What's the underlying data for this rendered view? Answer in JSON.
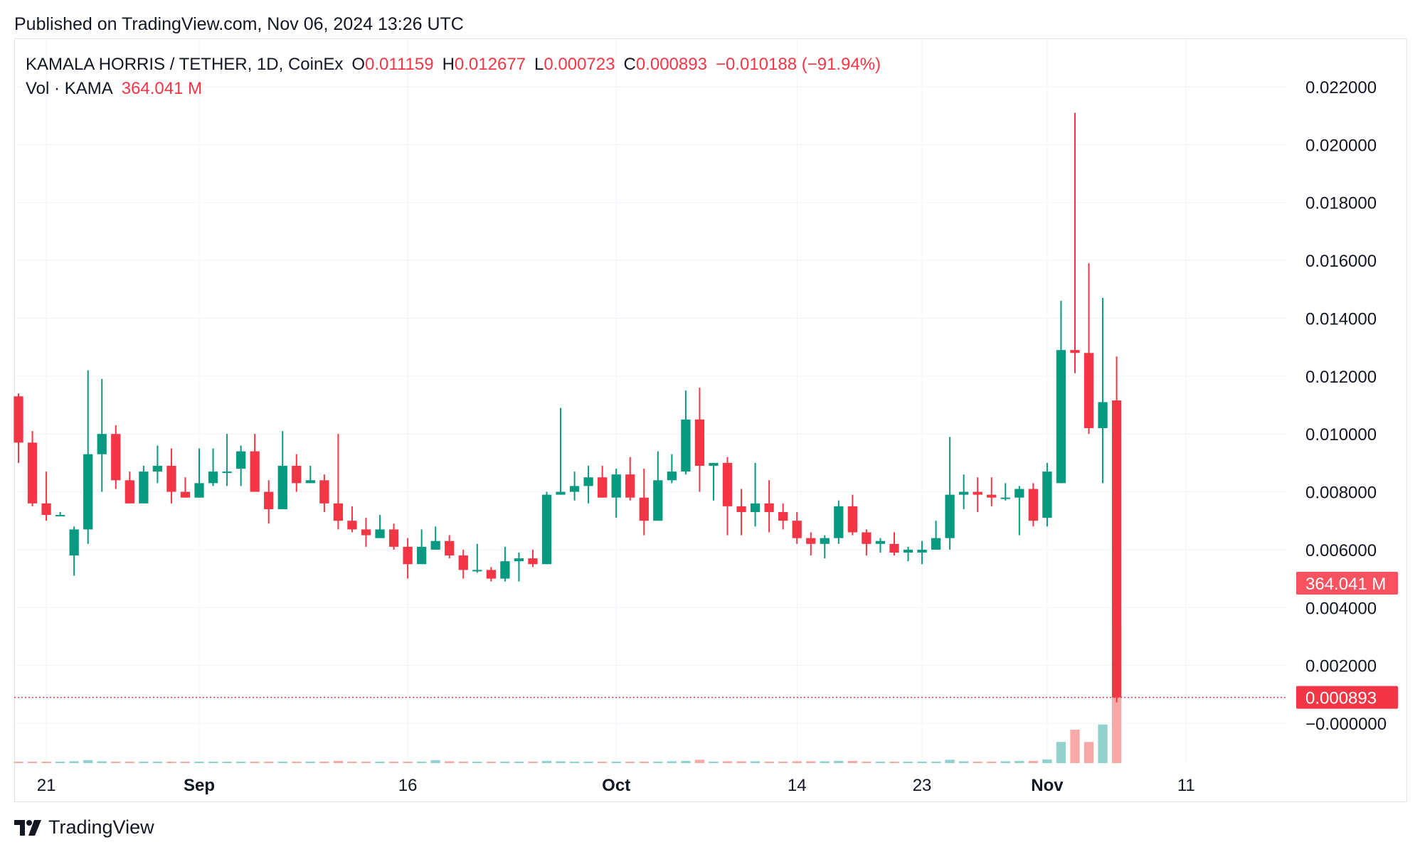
{
  "header": {
    "published": "Published on TradingView.com, Nov 06, 2024 13:26 UTC"
  },
  "legend": {
    "symbol": "KAMALA HORRIS / TETHER, 1D, CoinEx",
    "open_label": "O",
    "open": "0.011159",
    "high_label": "H",
    "high": "0.012677",
    "low_label": "L",
    "low": "0.000723",
    "close_label": "C",
    "close": "0.000893",
    "change": "−0.010188 (−91.94%)",
    "vol_label": "Vol · KAMA",
    "vol_value": "364.041 M"
  },
  "footer": {
    "brand": "TradingView"
  },
  "colors": {
    "up": "#089981",
    "down": "#f23645",
    "up_volume": "#92d2cc",
    "down_volume": "#f7a9a7",
    "grid": "#f0f3fa",
    "text": "#131722"
  },
  "chart_data": {
    "type": "candlestick",
    "symbol": "KAMALA HORRIS / TETHER",
    "interval": "1D",
    "exchange": "CoinEx",
    "y_range": [
      -0.0002,
      0.0225
    ],
    "y_ticks": [
      {
        "v": 0.022,
        "label": "0.022000"
      },
      {
        "v": 0.02,
        "label": "0.020000"
      },
      {
        "v": 0.018,
        "label": "0.018000"
      },
      {
        "v": 0.016,
        "label": "0.016000"
      },
      {
        "v": 0.014,
        "label": "0.014000"
      },
      {
        "v": 0.012,
        "label": "0.012000"
      },
      {
        "v": 0.01,
        "label": "0.010000"
      },
      {
        "v": 0.008,
        "label": "0.008000"
      },
      {
        "v": 0.006,
        "label": "0.006000"
      },
      {
        "v": 0.004,
        "label": "0.004000"
      },
      {
        "v": 0.002,
        "label": "0.002000"
      },
      {
        "v": 0.0,
        "label": "−0.000000"
      }
    ],
    "x_labels": [
      {
        "date": "2024-08-21",
        "label": "21",
        "bold": false
      },
      {
        "date": "2024-09-01",
        "label": "Sep",
        "bold": true
      },
      {
        "date": "2024-09-16",
        "label": "16",
        "bold": false
      },
      {
        "date": "2024-10-01",
        "label": "Oct",
        "bold": true
      },
      {
        "date": "2024-10-14",
        "label": "14",
        "bold": false
      },
      {
        "date": "2024-10-23",
        "label": "23",
        "bold": false
      },
      {
        "date": "2024-11-01",
        "label": "Nov",
        "bold": true
      },
      {
        "date": "2024-11-11",
        "label": "11",
        "bold": false
      }
    ],
    "x_range": [
      "2024-08-19",
      "2024-11-16"
    ],
    "last_price": {
      "value": 0.000893,
      "label": "0.000893"
    },
    "volume_label": {
      "value": 364041000,
      "label": "364.041 M"
    },
    "volume_max": 364041000,
    "candles": [
      {
        "date": "2024-08-19",
        "o": 0.0113,
        "h": 0.0114,
        "l": 0.009,
        "c": 0.0097,
        "v": 3000000
      },
      {
        "date": "2024-08-20",
        "o": 0.0097,
        "h": 0.0101,
        "l": 0.0075,
        "c": 0.0076,
        "v": 3000000
      },
      {
        "date": "2024-08-21",
        "o": 0.0076,
        "h": 0.0087,
        "l": 0.007,
        "c": 0.0072,
        "v": 3000000
      },
      {
        "date": "2024-08-22",
        "o": 0.0072,
        "h": 0.0073,
        "l": 0.0072,
        "c": 0.0072,
        "v": 2000000
      },
      {
        "date": "2024-08-23",
        "o": 0.0058,
        "h": 0.0068,
        "l": 0.0051,
        "c": 0.0067,
        "v": 5000000
      },
      {
        "date": "2024-08-24",
        "o": 0.0067,
        "h": 0.0122,
        "l": 0.0062,
        "c": 0.0093,
        "v": 8000000
      },
      {
        "date": "2024-08-25",
        "o": 0.0093,
        "h": 0.0119,
        "l": 0.008,
        "c": 0.01,
        "v": 5000000
      },
      {
        "date": "2024-08-26",
        "o": 0.01,
        "h": 0.0103,
        "l": 0.0081,
        "c": 0.0084,
        "v": 4000000
      },
      {
        "date": "2024-08-27",
        "o": 0.0084,
        "h": 0.0087,
        "l": 0.0076,
        "c": 0.0076,
        "v": 4000000
      },
      {
        "date": "2024-08-28",
        "o": 0.0076,
        "h": 0.0089,
        "l": 0.0076,
        "c": 0.0087,
        "v": 4000000
      },
      {
        "date": "2024-08-29",
        "o": 0.0087,
        "h": 0.0096,
        "l": 0.0083,
        "c": 0.0089,
        "v": 4000000
      },
      {
        "date": "2024-08-30",
        "o": 0.0089,
        "h": 0.0095,
        "l": 0.0076,
        "c": 0.008,
        "v": 3000000
      },
      {
        "date": "2024-08-31",
        "o": 0.008,
        "h": 0.0085,
        "l": 0.0078,
        "c": 0.0078,
        "v": 3000000
      },
      {
        "date": "2024-09-01",
        "o": 0.0078,
        "h": 0.0095,
        "l": 0.0078,
        "c": 0.0083,
        "v": 3000000
      },
      {
        "date": "2024-09-02",
        "o": 0.0083,
        "h": 0.0095,
        "l": 0.0082,
        "c": 0.0087,
        "v": 3000000
      },
      {
        "date": "2024-09-03",
        "o": 0.0087,
        "h": 0.01,
        "l": 0.0082,
        "c": 0.0087,
        "v": 3000000
      },
      {
        "date": "2024-09-04",
        "o": 0.0088,
        "h": 0.0096,
        "l": 0.0082,
        "c": 0.0094,
        "v": 3000000
      },
      {
        "date": "2024-09-05",
        "o": 0.0094,
        "h": 0.01,
        "l": 0.008,
        "c": 0.008,
        "v": 3000000
      },
      {
        "date": "2024-09-06",
        "o": 0.008,
        "h": 0.0084,
        "l": 0.0069,
        "c": 0.0074,
        "v": 4000000
      },
      {
        "date": "2024-09-07",
        "o": 0.0074,
        "h": 0.0101,
        "l": 0.0074,
        "c": 0.0089,
        "v": 4000000
      },
      {
        "date": "2024-09-08",
        "o": 0.0089,
        "h": 0.0093,
        "l": 0.008,
        "c": 0.0083,
        "v": 4000000
      },
      {
        "date": "2024-09-09",
        "o": 0.0083,
        "h": 0.0089,
        "l": 0.0083,
        "c": 0.0084,
        "v": 4000000
      },
      {
        "date": "2024-09-10",
        "o": 0.0084,
        "h": 0.0086,
        "l": 0.0073,
        "c": 0.0076,
        "v": 4000000
      },
      {
        "date": "2024-09-11",
        "o": 0.0076,
        "h": 0.01,
        "l": 0.0067,
        "c": 0.007,
        "v": 6000000
      },
      {
        "date": "2024-09-12",
        "o": 0.007,
        "h": 0.0075,
        "l": 0.0066,
        "c": 0.0067,
        "v": 4000000
      },
      {
        "date": "2024-09-13",
        "o": 0.0067,
        "h": 0.0071,
        "l": 0.0061,
        "c": 0.0065,
        "v": 4000000
      },
      {
        "date": "2024-09-14",
        "o": 0.0064,
        "h": 0.0072,
        "l": 0.0064,
        "c": 0.0067,
        "v": 3000000
      },
      {
        "date": "2024-09-15",
        "o": 0.0067,
        "h": 0.0069,
        "l": 0.006,
        "c": 0.0061,
        "v": 3000000
      },
      {
        "date": "2024-09-16",
        "o": 0.0061,
        "h": 0.0064,
        "l": 0.005,
        "c": 0.0055,
        "v": 3000000
      },
      {
        "date": "2024-09-17",
        "o": 0.0055,
        "h": 0.0067,
        "l": 0.0055,
        "c": 0.0061,
        "v": 4000000
      },
      {
        "date": "2024-09-18",
        "o": 0.006,
        "h": 0.0068,
        "l": 0.006,
        "c": 0.0063,
        "v": 8000000
      },
      {
        "date": "2024-09-19",
        "o": 0.0063,
        "h": 0.0065,
        "l": 0.0057,
        "c": 0.0058,
        "v": 5000000
      },
      {
        "date": "2024-09-20",
        "o": 0.0058,
        "h": 0.006,
        "l": 0.005,
        "c": 0.0053,
        "v": 4000000
      },
      {
        "date": "2024-09-21",
        "o": 0.0053,
        "h": 0.0062,
        "l": 0.0052,
        "c": 0.0053,
        "v": 3000000
      },
      {
        "date": "2024-09-22",
        "o": 0.0053,
        "h": 0.0054,
        "l": 0.0049,
        "c": 0.005,
        "v": 3000000
      },
      {
        "date": "2024-09-23",
        "o": 0.005,
        "h": 0.0061,
        "l": 0.0049,
        "c": 0.0056,
        "v": 4000000
      },
      {
        "date": "2024-09-24",
        "o": 0.0056,
        "h": 0.0059,
        "l": 0.0049,
        "c": 0.0057,
        "v": 4000000
      },
      {
        "date": "2024-09-25",
        "o": 0.0057,
        "h": 0.006,
        "l": 0.0054,
        "c": 0.0055,
        "v": 4000000
      },
      {
        "date": "2024-09-26",
        "o": 0.0055,
        "h": 0.008,
        "l": 0.0055,
        "c": 0.0079,
        "v": 6000000
      },
      {
        "date": "2024-09-27",
        "o": 0.0079,
        "h": 0.0109,
        "l": 0.0079,
        "c": 0.008,
        "v": 5000000
      },
      {
        "date": "2024-09-28",
        "o": 0.008,
        "h": 0.0087,
        "l": 0.0077,
        "c": 0.0082,
        "v": 4000000
      },
      {
        "date": "2024-09-29",
        "o": 0.0082,
        "h": 0.0089,
        "l": 0.0076,
        "c": 0.0085,
        "v": 4000000
      },
      {
        "date": "2024-09-30",
        "o": 0.0085,
        "h": 0.0089,
        "l": 0.0078,
        "c": 0.0078,
        "v": 3000000
      },
      {
        "date": "2024-10-01",
        "o": 0.0078,
        "h": 0.0088,
        "l": 0.0071,
        "c": 0.0086,
        "v": 4000000
      },
      {
        "date": "2024-10-02",
        "o": 0.0086,
        "h": 0.0092,
        "l": 0.0077,
        "c": 0.0078,
        "v": 3000000
      },
      {
        "date": "2024-10-03",
        "o": 0.0078,
        "h": 0.0088,
        "l": 0.0065,
        "c": 0.007,
        "v": 4000000
      },
      {
        "date": "2024-10-04",
        "o": 0.007,
        "h": 0.0094,
        "l": 0.007,
        "c": 0.0084,
        "v": 4000000
      },
      {
        "date": "2024-10-05",
        "o": 0.0084,
        "h": 0.0093,
        "l": 0.0083,
        "c": 0.0087,
        "v": 5000000
      },
      {
        "date": "2024-10-06",
        "o": 0.0087,
        "h": 0.0115,
        "l": 0.0086,
        "c": 0.0105,
        "v": 6000000
      },
      {
        "date": "2024-10-07",
        "o": 0.0105,
        "h": 0.0116,
        "l": 0.008,
        "c": 0.0089,
        "v": 9000000
      },
      {
        "date": "2024-10-08",
        "o": 0.0089,
        "h": 0.009,
        "l": 0.0077,
        "c": 0.009,
        "v": 4000000
      },
      {
        "date": "2024-10-09",
        "o": 0.009,
        "h": 0.0092,
        "l": 0.0065,
        "c": 0.0075,
        "v": 5000000
      },
      {
        "date": "2024-10-10",
        "o": 0.0075,
        "h": 0.0081,
        "l": 0.0065,
        "c": 0.0073,
        "v": 5000000
      },
      {
        "date": "2024-10-11",
        "o": 0.0073,
        "h": 0.009,
        "l": 0.0068,
        "c": 0.0076,
        "v": 5000000
      },
      {
        "date": "2024-10-12",
        "o": 0.0076,
        "h": 0.0084,
        "l": 0.0066,
        "c": 0.0073,
        "v": 4000000
      },
      {
        "date": "2024-10-13",
        "o": 0.0073,
        "h": 0.0076,
        "l": 0.0067,
        "c": 0.007,
        "v": 4000000
      },
      {
        "date": "2024-10-14",
        "o": 0.007,
        "h": 0.0073,
        "l": 0.0062,
        "c": 0.0064,
        "v": 5000000
      },
      {
        "date": "2024-10-15",
        "o": 0.0064,
        "h": 0.0066,
        "l": 0.0058,
        "c": 0.0062,
        "v": 5000000
      },
      {
        "date": "2024-10-16",
        "o": 0.0062,
        "h": 0.0065,
        "l": 0.0057,
        "c": 0.0064,
        "v": 5000000
      },
      {
        "date": "2024-10-17",
        "o": 0.0064,
        "h": 0.0077,
        "l": 0.0062,
        "c": 0.0075,
        "v": 6000000
      },
      {
        "date": "2024-10-18",
        "o": 0.0075,
        "h": 0.0079,
        "l": 0.0065,
        "c": 0.0066,
        "v": 6000000
      },
      {
        "date": "2024-10-19",
        "o": 0.0066,
        "h": 0.0067,
        "l": 0.0058,
        "c": 0.0062,
        "v": 4000000
      },
      {
        "date": "2024-10-20",
        "o": 0.0062,
        "h": 0.0064,
        "l": 0.0059,
        "c": 0.0063,
        "v": 4000000
      },
      {
        "date": "2024-10-21",
        "o": 0.0062,
        "h": 0.0066,
        "l": 0.0058,
        "c": 0.0059,
        "v": 3000000
      },
      {
        "date": "2024-10-22",
        "o": 0.0059,
        "h": 0.0061,
        "l": 0.0056,
        "c": 0.006,
        "v": 3000000
      },
      {
        "date": "2024-10-23",
        "o": 0.0059,
        "h": 0.0063,
        "l": 0.0055,
        "c": 0.006,
        "v": 4000000
      },
      {
        "date": "2024-10-24",
        "o": 0.006,
        "h": 0.007,
        "l": 0.006,
        "c": 0.0064,
        "v": 4000000
      },
      {
        "date": "2024-10-25",
        "o": 0.0064,
        "h": 0.0099,
        "l": 0.006,
        "c": 0.0079,
        "v": 9000000
      },
      {
        "date": "2024-10-26",
        "o": 0.0079,
        "h": 0.0086,
        "l": 0.0074,
        "c": 0.008,
        "v": 5000000
      },
      {
        "date": "2024-10-27",
        "o": 0.008,
        "h": 0.0085,
        "l": 0.0073,
        "c": 0.0079,
        "v": 4000000
      },
      {
        "date": "2024-10-28",
        "o": 0.0079,
        "h": 0.0085,
        "l": 0.0075,
        "c": 0.0078,
        "v": 4000000
      },
      {
        "date": "2024-10-29",
        "o": 0.0078,
        "h": 0.0083,
        "l": 0.0077,
        "c": 0.0078,
        "v": 5000000
      },
      {
        "date": "2024-10-30",
        "o": 0.0078,
        "h": 0.0082,
        "l": 0.0065,
        "c": 0.0081,
        "v": 6000000
      },
      {
        "date": "2024-10-31",
        "o": 0.0081,
        "h": 0.0083,
        "l": 0.0068,
        "c": 0.007,
        "v": 6000000
      },
      {
        "date": "2024-11-01",
        "o": 0.0071,
        "h": 0.009,
        "l": 0.0068,
        "c": 0.0087,
        "v": 10000000
      },
      {
        "date": "2024-11-02",
        "o": 0.0083,
        "h": 0.0146,
        "l": 0.0083,
        "c": 0.0129,
        "v": 57000000
      },
      {
        "date": "2024-11-03",
        "o": 0.0129,
        "h": 0.0211,
        "l": 0.0121,
        "c": 0.0128,
        "v": 90000000
      },
      {
        "date": "2024-11-04",
        "o": 0.0128,
        "h": 0.0159,
        "l": 0.01,
        "c": 0.0102,
        "v": 57000000
      },
      {
        "date": "2024-11-05",
        "o": 0.0102,
        "h": 0.0147,
        "l": 0.0083,
        "c": 0.0111,
        "v": 104000000
      },
      {
        "date": "2024-11-06",
        "o": 0.011159,
        "h": 0.012677,
        "l": 0.000723,
        "c": 0.000893,
        "v": 364041000
      }
    ]
  }
}
